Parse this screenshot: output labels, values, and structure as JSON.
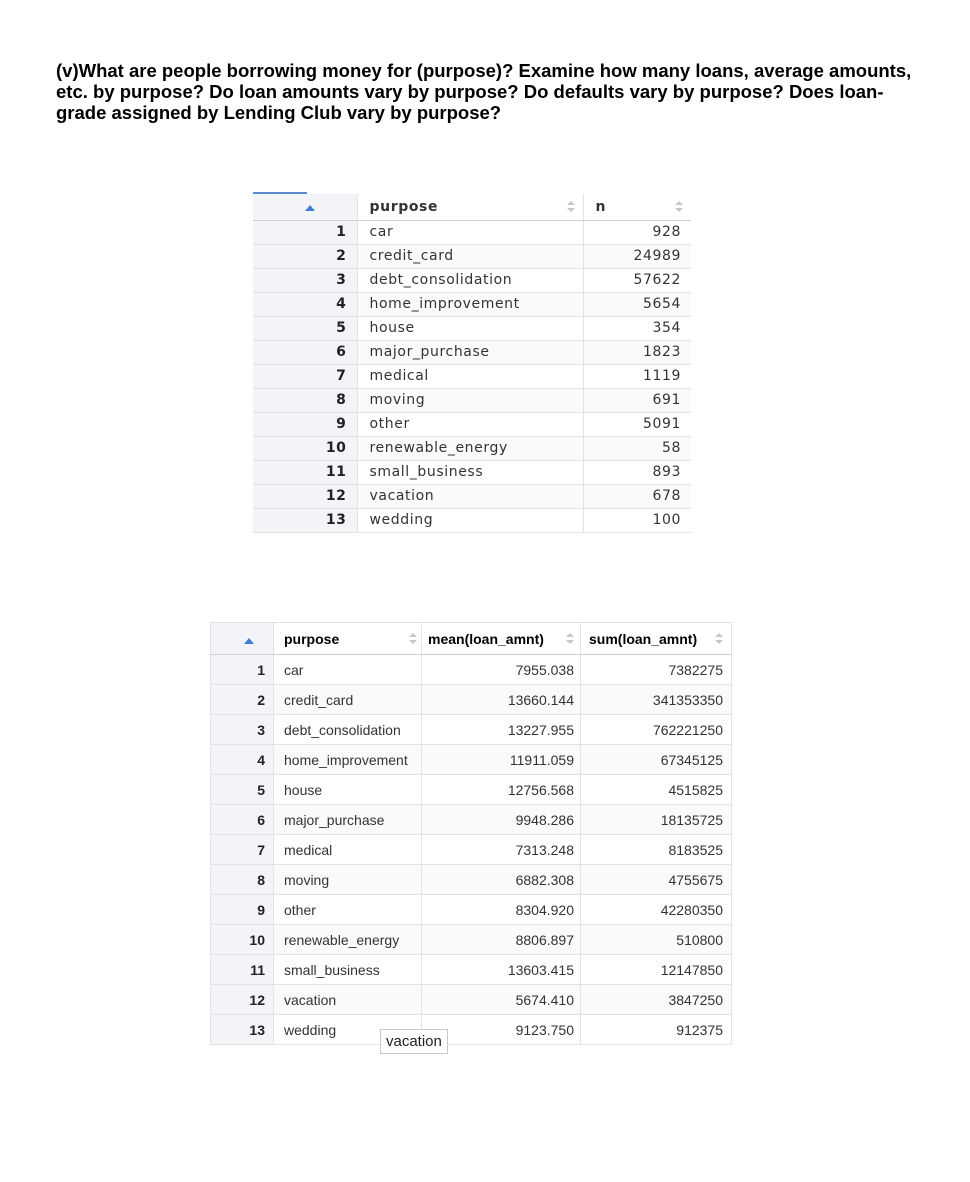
{
  "question": "(v)What are people borrowing money for (purpose)? Examine how many loans, average amounts, etc. by purpose? Do loan amounts vary by purpose? Do defaults vary by purpose? Does loan-grade assigned by Lending Club vary by purpose?",
  "table1": {
    "columns": [
      "purpose",
      "n"
    ],
    "rows": [
      {
        "idx": "1",
        "purpose": "car",
        "n": "928"
      },
      {
        "idx": "2",
        "purpose": "credit_card",
        "n": "24989"
      },
      {
        "idx": "3",
        "purpose": "debt_consolidation",
        "n": "57622"
      },
      {
        "idx": "4",
        "purpose": "home_improvement",
        "n": "5654"
      },
      {
        "idx": "5",
        "purpose": "house",
        "n": "354"
      },
      {
        "idx": "6",
        "purpose": "major_purchase",
        "n": "1823"
      },
      {
        "idx": "7",
        "purpose": "medical",
        "n": "1119"
      },
      {
        "idx": "8",
        "purpose": "moving",
        "n": "691"
      },
      {
        "idx": "9",
        "purpose": "other",
        "n": "5091"
      },
      {
        "idx": "10",
        "purpose": "renewable_energy",
        "n": "58"
      },
      {
        "idx": "11",
        "purpose": "small_business",
        "n": "893"
      },
      {
        "idx": "12",
        "purpose": "vacation",
        "n": "678"
      },
      {
        "idx": "13",
        "purpose": "wedding",
        "n": "100"
      }
    ]
  },
  "table2": {
    "columns": [
      "purpose",
      "mean(loan_amnt)",
      "sum(loan_amnt)"
    ],
    "rows": [
      {
        "idx": "1",
        "purpose": "car",
        "mean": "7955.038",
        "sum": "7382275"
      },
      {
        "idx": "2",
        "purpose": "credit_card",
        "mean": "13660.144",
        "sum": "341353350"
      },
      {
        "idx": "3",
        "purpose": "debt_consolidation",
        "mean": "13227.955",
        "sum": "762221250"
      },
      {
        "idx": "4",
        "purpose": "home_improvement",
        "mean": "11911.059",
        "sum": "67345125"
      },
      {
        "idx": "5",
        "purpose": "house",
        "mean": "12756.568",
        "sum": "4515825"
      },
      {
        "idx": "6",
        "purpose": "major_purchase",
        "mean": "9948.286",
        "sum": "18135725"
      },
      {
        "idx": "7",
        "purpose": "medical",
        "mean": "7313.248",
        "sum": "8183525"
      },
      {
        "idx": "8",
        "purpose": "moving",
        "mean": "6882.308",
        "sum": "4755675"
      },
      {
        "idx": "9",
        "purpose": "other",
        "mean": "8304.920",
        "sum": "42280350"
      },
      {
        "idx": "10",
        "purpose": "renewable_energy",
        "mean": "8806.897",
        "sum": "510800"
      },
      {
        "idx": "11",
        "purpose": "small_business",
        "mean": "13603.415",
        "sum": "12147850"
      },
      {
        "idx": "12",
        "purpose": "vacation",
        "mean": "5674.410",
        "sum": "3847250"
      },
      {
        "idx": "13",
        "purpose": "wedding",
        "mean": "9123.750",
        "sum": "912375"
      }
    ]
  },
  "tooltip": "vacation",
  "colors": {
    "sort_active": "#3b7fd0",
    "index_bg": "#f2f4f7",
    "grid": "#e3e3e3"
  }
}
